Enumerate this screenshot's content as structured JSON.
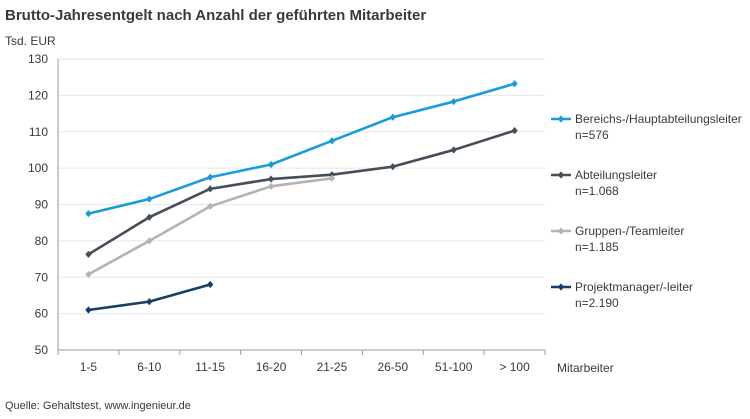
{
  "chart_data": {
    "type": "line",
    "title": "Brutto-Jahresentgelt nach Anzahl der geführten Mitarbeiter",
    "ylabel": "Tsd. EUR",
    "xlabel": "Mitarbeiter",
    "ylim": [
      50,
      130
    ],
    "yticks": [
      50,
      60,
      70,
      80,
      90,
      100,
      110,
      120,
      130
    ],
    "categories": [
      "1-5",
      "6-10",
      "11-15",
      "16-20",
      "21-25",
      "26-50",
      "51-100",
      "> 100"
    ],
    "grid": "horizontal",
    "legend_position": "right",
    "series": [
      {
        "name": "Bereichs-/Hauptabteilungsleiter",
        "note": "n=576",
        "color": "#1b9bd7",
        "values": [
          87.5,
          91.5,
          97.5,
          101,
          107.5,
          114,
          118.3,
          123.2
        ]
      },
      {
        "name": "Abteilungsleiter",
        "note": "n=1.068",
        "color": "#444f5a",
        "values": [
          76.3,
          86.5,
          94.3,
          97,
          98.2,
          100.4,
          105,
          110.3
        ]
      },
      {
        "name": "Gruppen-/Teamleiter",
        "note": "n=1.185",
        "color": "#b3b3b3",
        "values": [
          70.8,
          80,
          89.5,
          95,
          97.2,
          null,
          null,
          null
        ]
      },
      {
        "name": "Projektmanager/-leiter",
        "note": "n=2.190",
        "color": "#173f64",
        "values": [
          61,
          63.3,
          68,
          null,
          null,
          null,
          null,
          null
        ]
      }
    ],
    "source": "Quelle: Gehaltstest, www.ingenieur.de"
  }
}
